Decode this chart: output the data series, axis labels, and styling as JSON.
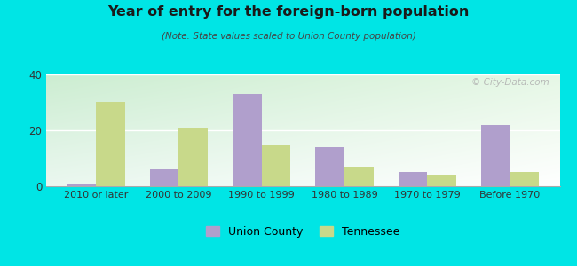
{
  "title": "Year of entry for the foreign-born population",
  "subtitle": "(Note: State values scaled to Union County population)",
  "categories": [
    "2010 or later",
    "2000 to 2009",
    "1990 to 1999",
    "1980 to 1989",
    "1970 to 1979",
    "Before 1970"
  ],
  "union_county": [
    1,
    6,
    33,
    14,
    5,
    22
  ],
  "tennessee": [
    30,
    21,
    15,
    7,
    4,
    5
  ],
  "union_color": "#b09fcc",
  "tennessee_color": "#c8d98a",
  "background_color": "#00e5e5",
  "ylim": [
    0,
    40
  ],
  "yticks": [
    0,
    20,
    40
  ],
  "bar_width": 0.35,
  "legend_labels": [
    "Union County",
    "Tennessee"
  ],
  "watermark": "© City-Data.com"
}
